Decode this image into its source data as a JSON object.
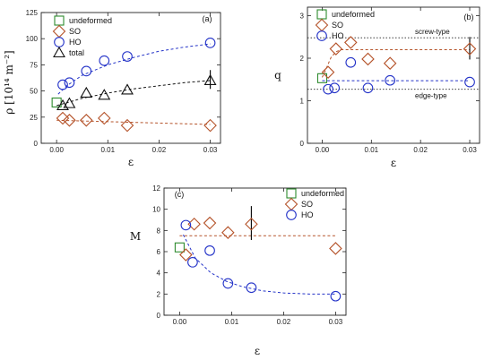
{
  "chart_data": [
    {
      "panel": "(a)",
      "type": "scatter",
      "ylabel": "ρ [10¹⁴ m⁻²]",
      "xlabel": "ε",
      "xlim": [
        -0.003,
        0.032
      ],
      "ylim": [
        0,
        125
      ],
      "xticks": [
        "0.00",
        "0.01",
        "0.02",
        "0.03"
      ],
      "xtick_values": [
        0,
        0.01,
        0.02,
        0.03
      ],
      "yticks": [
        "0",
        "25",
        "50",
        "75",
        "100",
        "125"
      ],
      "ytick_values": [
        0,
        25,
        50,
        75,
        100,
        125
      ],
      "legend": {
        "placement": "top-left",
        "entries": [
          "undeformed",
          "SO",
          "HO",
          "total"
        ]
      },
      "series": [
        {
          "name": "undeformed",
          "marker": "square",
          "color": "#2e8b2e",
          "x": [
            0.0
          ],
          "y": [
            39
          ]
        },
        {
          "name": "SO",
          "marker": "diamond",
          "color": "#b5532a",
          "x": [
            0.0012,
            0.0025,
            0.0058,
            0.0093,
            0.0138,
            0.03
          ],
          "y": [
            24,
            22,
            22,
            24,
            17,
            17
          ],
          "fit": {
            "x": [
              0.0,
              0.03
            ],
            "y": [
              22,
              18
            ]
          }
        },
        {
          "name": "HO",
          "marker": "circle",
          "color": "#2433c8",
          "x": [
            0.0012,
            0.0025,
            0.0058,
            0.0093,
            0.0138,
            0.03
          ],
          "y": [
            56,
            58,
            69,
            79,
            83,
            96
          ],
          "fit": {
            "x": [
              0.0003,
              0.002,
              0.005,
              0.01,
              0.015,
              0.02,
              0.025,
              0.03
            ],
            "y": [
              47,
              55,
              65,
              75,
              82,
              88,
              92,
              95
            ]
          }
        },
        {
          "name": "total",
          "marker": "triangle",
          "color": "#111111",
          "x": [
            0.0012,
            0.0025,
            0.0058,
            0.0093,
            0.0138,
            0.03
          ],
          "y": [
            36,
            38,
            48,
            46,
            51,
            60
          ],
          "fit": {
            "x": [
              0.0,
              0.005,
              0.01,
              0.015,
              0.02,
              0.025,
              0.03
            ],
            "y": [
              36,
              43,
              48,
              52,
              55,
              58,
              60
            ]
          },
          "errorbar": {
            "x": 0.03,
            "low": 52,
            "high": 70
          }
        }
      ],
      "reference_lines": []
    },
    {
      "panel": "(b)",
      "type": "scatter",
      "ylabel": "q",
      "xlabel": "ε",
      "xlim": [
        -0.003,
        0.032
      ],
      "ylim": [
        0,
        3.2
      ],
      "xticks": [
        "0.00",
        "0.01",
        "0.02",
        "0.03"
      ],
      "xtick_values": [
        0,
        0.01,
        0.02,
        0.03
      ],
      "yticks": [
        "0",
        "1",
        "2",
        "3"
      ],
      "ytick_values": [
        0,
        1,
        2,
        3
      ],
      "legend": {
        "placement": "top-left",
        "entries": [
          "undeformed",
          "SO",
          "HO"
        ]
      },
      "series": [
        {
          "name": "undeformed",
          "marker": "square",
          "color": "#2e8b2e",
          "x": [
            0.0
          ],
          "y": [
            1.53
          ]
        },
        {
          "name": "SO",
          "marker": "diamond",
          "color": "#b5532a",
          "x": [
            0.0012,
            0.0028,
            0.0058,
            0.0093,
            0.0138,
            0.03
          ],
          "y": [
            1.67,
            2.22,
            2.37,
            1.98,
            1.88,
            2.22
          ],
          "fit": {
            "x": [
              0.0,
              0.0008,
              0.0018,
              0.0028,
              0.0038,
              0.03
            ],
            "y": [
              1.55,
              1.75,
              2.02,
              2.15,
              2.2,
              2.2
            ]
          },
          "errorbar": {
            "x": 0.03,
            "low": 1.97,
            "high": 2.5
          }
        },
        {
          "name": "HO",
          "marker": "circle",
          "color": "#2433c8",
          "x": [
            0.0012,
            0.0025,
            0.0058,
            0.0093,
            0.0138,
            0.03
          ],
          "y": [
            1.27,
            1.3,
            1.9,
            1.3,
            1.48,
            1.44
          ],
          "fit": {
            "x": [
              0.0,
              0.03
            ],
            "y": [
              1.47,
              1.47
            ]
          }
        }
      ],
      "reference_lines": [
        {
          "label": "screw-type",
          "y": 2.48
        },
        {
          "label": "edge-type",
          "y": 1.27
        }
      ]
    },
    {
      "panel": "(c)",
      "type": "scatter",
      "ylabel": "M",
      "xlabel": "ε",
      "xlim": [
        -0.003,
        0.032
      ],
      "ylim": [
        0,
        12
      ],
      "xticks": [
        "0.00",
        "0.01",
        "0.02",
        "0.03"
      ],
      "xtick_values": [
        0,
        0.01,
        0.02,
        0.03
      ],
      "yticks": [
        "0",
        "2",
        "4",
        "6",
        "8",
        "10",
        "12"
      ],
      "ytick_values": [
        0,
        2,
        4,
        6,
        8,
        10,
        12
      ],
      "legend": {
        "placement": "top-right",
        "entries": [
          "undeformed",
          "SO",
          "HO"
        ]
      },
      "series": [
        {
          "name": "undeformed",
          "marker": "square",
          "color": "#2e8b2e",
          "x": [
            0.0
          ],
          "y": [
            6.4
          ]
        },
        {
          "name": "SO",
          "marker": "diamond",
          "color": "#b5532a",
          "x": [
            0.0012,
            0.0028,
            0.0058,
            0.0093,
            0.0138,
            0.03
          ],
          "y": [
            5.7,
            8.6,
            8.7,
            7.8,
            8.6,
            6.3
          ],
          "fit": {
            "x": [
              0.0,
              0.03
            ],
            "y": [
              7.5,
              7.5
            ]
          },
          "errorbar": {
            "x": 0.0138,
            "low": 7.1,
            "high": 10.3
          }
        },
        {
          "name": "HO",
          "marker": "circle",
          "color": "#2433c8",
          "x": [
            0.0012,
            0.0025,
            0.0058,
            0.0093,
            0.0138,
            0.03
          ],
          "y": [
            8.5,
            5.0,
            6.1,
            3.0,
            2.6,
            1.8
          ],
          "fit": {
            "x": [
              0.0007,
              0.003,
              0.006,
              0.009,
              0.012,
              0.016,
              0.02,
              0.025,
              0.03
            ],
            "y": [
              7.6,
              5.4,
              4.0,
              3.2,
              2.7,
              2.3,
              2.1,
              2.0,
              2.0
            ]
          }
        }
      ],
      "reference_lines": []
    }
  ]
}
